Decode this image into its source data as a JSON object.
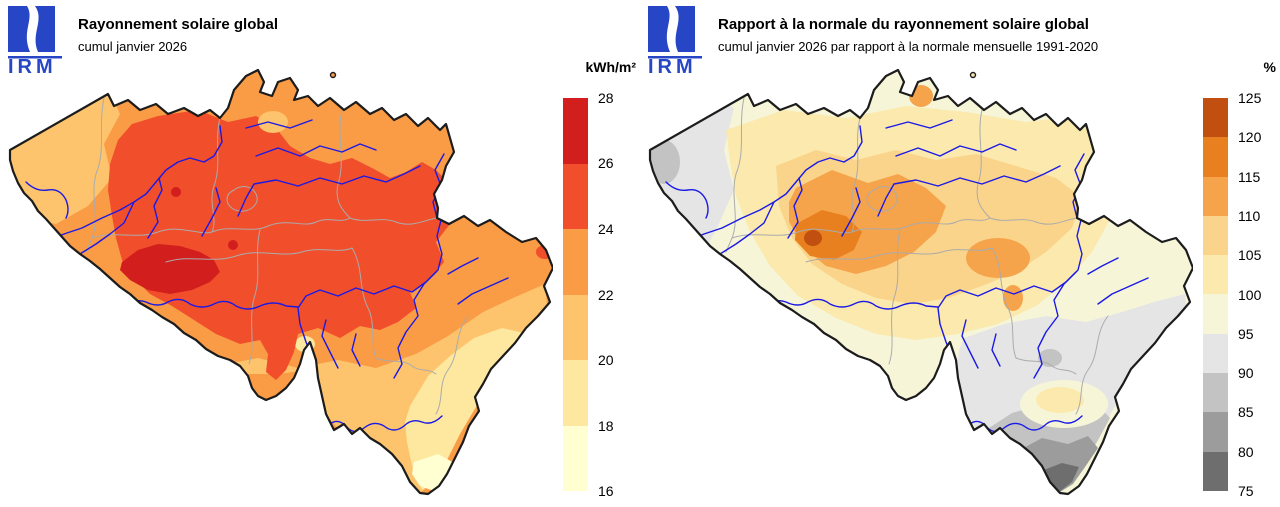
{
  "logo": {
    "text": "IRM",
    "color": "#2746C6"
  },
  "map": {
    "country_border_color": "#1c1c1c",
    "province_border_color": "#ababab",
    "river_color": "#1a1ae6",
    "background": "#ffffff"
  },
  "panels": [
    {
      "title": "Rayonnement solaire global",
      "subtitle": "cumul janvier 2026",
      "legend": {
        "unit": "kWh/m²",
        "ticks": [
          "28",
          "26",
          "24",
          "22",
          "20",
          "18",
          "16"
        ],
        "segments": [
          {
            "from": 26,
            "to": 28,
            "color": "#D31E1E"
          },
          {
            "from": 24,
            "to": 26,
            "color": "#F14E2C"
          },
          {
            "from": 22,
            "to": 24,
            "color": "#FA9B45"
          },
          {
            "from": 20,
            "to": 22,
            "color": "#FDC46D"
          },
          {
            "from": 18,
            "to": 20,
            "color": "#FEE79F"
          },
          {
            "from": 16,
            "to": 18,
            "color": "#FFFFD2"
          }
        ]
      }
    },
    {
      "title": "Rapport à la normale du rayonnement solaire global",
      "subtitle": "cumul janvier 2026 par rapport à la normale mensuelle 1991-2020",
      "legend": {
        "unit": "%",
        "ticks": [
          "125",
          "120",
          "115",
          "110",
          "105",
          "100",
          "95",
          "90",
          "85",
          "80",
          "75"
        ],
        "segments": [
          {
            "from": 120,
            "to": 125,
            "color": "#C04F10"
          },
          {
            "from": 115,
            "to": 120,
            "color": "#E8801F"
          },
          {
            "from": 110,
            "to": 115,
            "color": "#F5A44B"
          },
          {
            "from": 105,
            "to": 110,
            "color": "#FBD48B"
          },
          {
            "from": 100,
            "to": 105,
            "color": "#FBE9AE"
          },
          {
            "from": 95,
            "to": 100,
            "color": "#F7F5D8"
          },
          {
            "from": 90,
            "to": 95,
            "color": "#E5E5E5"
          },
          {
            "from": 85,
            "to": 90,
            "color": "#C3C3C3"
          },
          {
            "from": 80,
            "to": 85,
            "color": "#9C9C9C"
          },
          {
            "from": 75,
            "to": 80,
            "color": "#6E6E6E"
          }
        ]
      }
    }
  ]
}
